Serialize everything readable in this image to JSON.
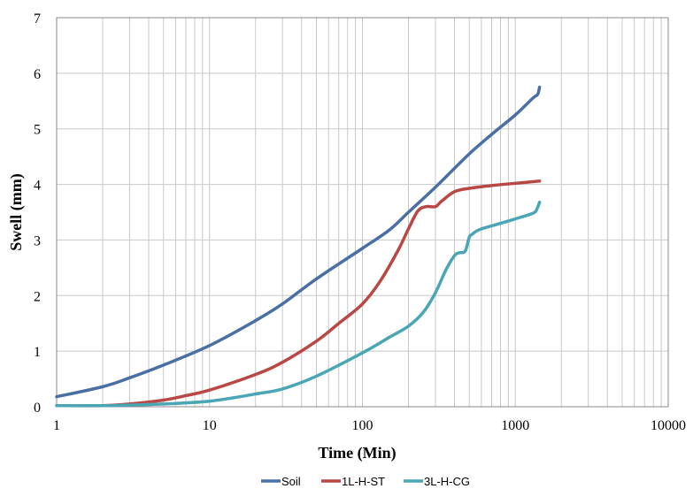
{
  "chart_data": {
    "type": "line",
    "title": "",
    "xlabel": "Time (Min)",
    "ylabel": "Swell (mm)",
    "xscale": "log",
    "xlim": [
      1,
      10000
    ],
    "ylim": [
      0,
      7
    ],
    "x_ticks": [
      1,
      10,
      100,
      1000,
      10000
    ],
    "x_tick_labels": [
      "1",
      "10",
      "100",
      "1000",
      "10000"
    ],
    "y_ticks": [
      0,
      1,
      2,
      3,
      4,
      5,
      6,
      7
    ],
    "y_tick_labels": [
      "0",
      "1",
      "2",
      "3",
      "4",
      "5",
      "6",
      "7"
    ],
    "grid": "major and minor vertical (log), major horizontal",
    "legend_position": "bottom",
    "series": [
      {
        "name": "Soil",
        "color": "#4a6fa5",
        "x": [
          1,
          2,
          3,
          5,
          10,
          20,
          30,
          50,
          100,
          150,
          200,
          300,
          500,
          700,
          1000,
          1300,
          1400,
          1440
        ],
        "y": [
          0.18,
          0.36,
          0.52,
          0.75,
          1.1,
          1.55,
          1.85,
          2.3,
          2.85,
          3.18,
          3.5,
          3.95,
          4.55,
          4.9,
          5.25,
          5.55,
          5.62,
          5.75
        ]
      },
      {
        "name": "1L-H-ST",
        "color": "#b94845",
        "x": [
          1,
          2,
          3,
          5,
          7,
          10,
          20,
          30,
          50,
          70,
          100,
          130,
          170,
          200,
          230,
          260,
          300,
          330,
          400,
          500,
          700,
          1000,
          1440
        ],
        "y": [
          0.02,
          0.02,
          0.05,
          0.12,
          0.2,
          0.3,
          0.58,
          0.8,
          1.18,
          1.5,
          1.85,
          2.25,
          2.8,
          3.2,
          3.52,
          3.6,
          3.6,
          3.7,
          3.87,
          3.93,
          3.98,
          4.02,
          4.06
        ]
      },
      {
        "name": "3L-H-CG",
        "color": "#4aa6b5",
        "x": [
          1,
          2,
          3,
          5,
          7,
          10,
          15,
          20,
          30,
          50,
          100,
          150,
          200,
          250,
          300,
          350,
          400,
          430,
          470,
          500,
          520,
          550,
          600,
          800,
          1000,
          1300,
          1380,
          1440
        ],
        "y": [
          0.02,
          0.02,
          0.03,
          0.05,
          0.07,
          0.1,
          0.17,
          0.23,
          0.32,
          0.55,
          0.97,
          1.25,
          1.45,
          1.7,
          2.05,
          2.45,
          2.72,
          2.77,
          2.8,
          3.05,
          3.1,
          3.15,
          3.2,
          3.3,
          3.38,
          3.48,
          3.55,
          3.68
        ]
      }
    ]
  }
}
